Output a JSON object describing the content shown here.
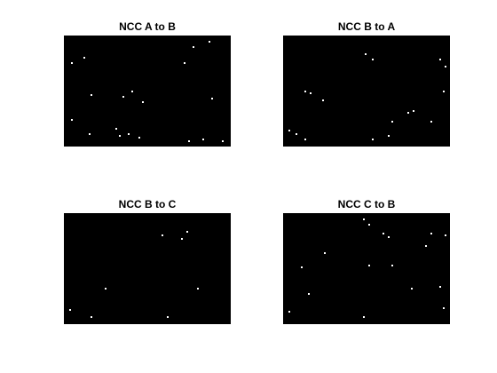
{
  "figure": {
    "background": "#ffffff"
  },
  "panels": [
    {
      "title": "NCC A to B",
      "image_color": "#000000",
      "point_color": "#ffffff"
    },
    {
      "title": "NCC B to A",
      "image_color": "#000000",
      "point_color": "#ffffff"
    },
    {
      "title": "NCC B to C",
      "image_color": "#000000",
      "point_color": "#ffffff"
    },
    {
      "title": "NCC C to B",
      "image_color": "#000000",
      "point_color": "#ffffff"
    }
  ]
}
